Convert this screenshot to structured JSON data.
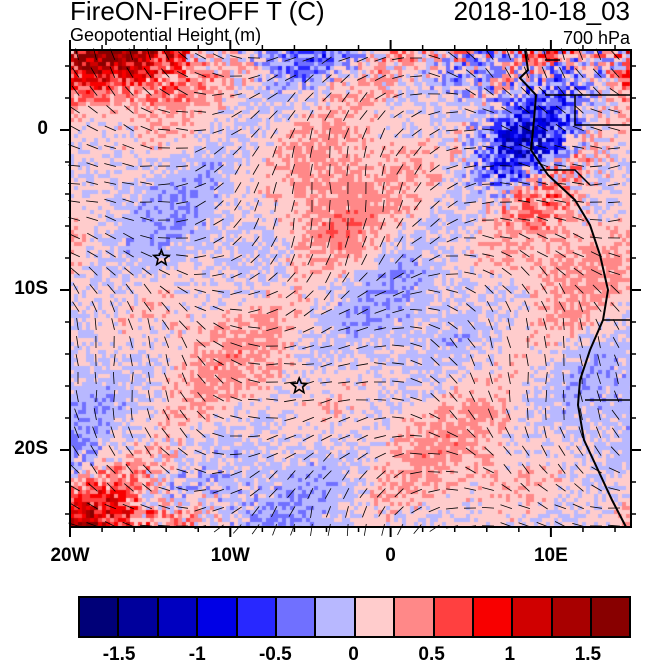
{
  "header": {
    "title": "FireON-FireOFF T (C)",
    "date": "2018-10-18_03",
    "subtitle": "Geopotential Height (m)",
    "level": "700 hPa"
  },
  "map": {
    "lon_range": [
      -20,
      15
    ],
    "lat_range": [
      -25,
      5
    ],
    "lon_labels": [
      {
        "lon": -20,
        "text": "20W"
      },
      {
        "lon": -10,
        "text": "10W"
      },
      {
        "lon": 0,
        "text": "0"
      },
      {
        "lon": 10,
        "text": "10E"
      }
    ],
    "lat_labels": [
      {
        "lat": 0,
        "text": "0"
      },
      {
        "lat": -10,
        "text": "10S"
      },
      {
        "lat": -20,
        "text": "20S"
      }
    ],
    "stars": [
      {
        "lon": -14.3,
        "lat": -8.0
      },
      {
        "lon": -5.7,
        "lat": -16.0
      }
    ]
  },
  "colorbar": {
    "colors": [
      "#000078",
      "#00009c",
      "#0000c0",
      "#0000e6",
      "#2828ff",
      "#7070ff",
      "#b8b8ff",
      "#ffcccc",
      "#ff8888",
      "#ff4040",
      "#f80000",
      "#d00000",
      "#a80000",
      "#880000"
    ],
    "labels": [
      {
        "value": -1.5,
        "text": "-1.5"
      },
      {
        "value": -1,
        "text": "-1"
      },
      {
        "value": -0.5,
        "text": "-0.5"
      },
      {
        "value": 0,
        "text": "0"
      },
      {
        "value": 0.5,
        "text": "0.5"
      },
      {
        "value": 1,
        "text": "1"
      },
      {
        "value": 1.5,
        "text": "1.5"
      }
    ],
    "min": -1.75,
    "max": 1.75
  }
}
